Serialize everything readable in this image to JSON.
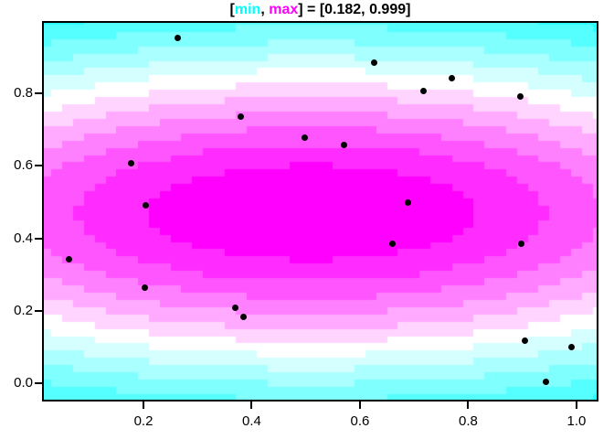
{
  "title": {
    "open_bracket": "[",
    "min_label": "min",
    "comma": ", ",
    "max_label": "max",
    "rest": "] = [0.182, 0.999]",
    "min_color": "#00FFFF",
    "max_color": "#FF00FF",
    "text_color": "#000000"
  },
  "axes": {
    "x": {
      "tick_labels": [
        "0.2",
        "0.4",
        "0.6",
        "0.8",
        "1.0"
      ],
      "tick_values": [
        0.2,
        0.4,
        0.6,
        0.8,
        1.0
      ]
    },
    "y": {
      "tick_labels": [
        "0.0",
        "0.2",
        "0.4",
        "0.6",
        "0.8"
      ],
      "tick_values": [
        0.0,
        0.2,
        0.4,
        0.6,
        0.8
      ]
    }
  },
  "chart_data": [
    {
      "type": "heatmap",
      "description": "Filled contour (R image-style) of a smooth elliptical 2D Gaussian bump, discretized on a 0.02-step grid, cyan-to-white-to-magenta palette, lowest values in corners, peak near plot center",
      "z_min": 0.182,
      "z_max": 0.999,
      "n_levels": 13,
      "palette": {
        "low": "#00FFFF",
        "mid": "#FFFFFF",
        "high": "#FF00FF"
      },
      "surface": {
        "kind": "gaussian",
        "center_x": 0.51,
        "center_y": 0.47,
        "radius_x": 1.183,
        "radius_y": 0.5157,
        "amplitude": 0.999,
        "grid_step": 0.02
      },
      "xlim": [
        0.016,
        1.0372
      ],
      "ylim": [
        -0.0455,
        0.9949
      ]
    },
    {
      "type": "scatter",
      "marker": {
        "shape": "filled-circle",
        "color": "#000000",
        "radius_px": 3.5
      },
      "points": [
        [
          0.264,
          0.952
        ],
        [
          0.627,
          0.885
        ],
        [
          0.77,
          0.842
        ],
        [
          0.717,
          0.807
        ],
        [
          0.897,
          0.791
        ],
        [
          0.379,
          0.735
        ],
        [
          0.498,
          0.677
        ],
        [
          0.571,
          0.658
        ],
        [
          0.177,
          0.608
        ],
        [
          0.205,
          0.49
        ],
        [
          0.688,
          0.498
        ],
        [
          0.062,
          0.341
        ],
        [
          0.203,
          0.264
        ],
        [
          0.37,
          0.208
        ],
        [
          0.385,
          0.184
        ],
        [
          0.66,
          0.385
        ],
        [
          0.898,
          0.386
        ],
        [
          0.905,
          0.118
        ],
        [
          0.991,
          0.099
        ],
        [
          0.943,
          0.003
        ]
      ]
    }
  ]
}
